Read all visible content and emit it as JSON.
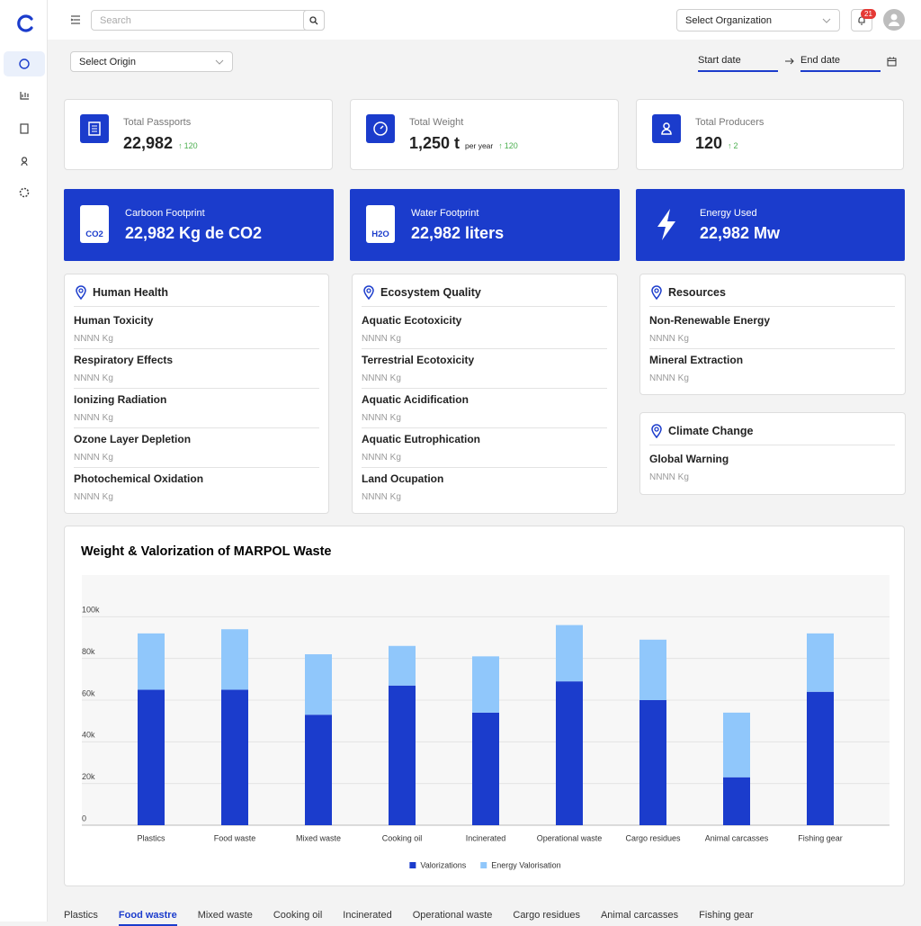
{
  "header": {
    "search_placeholder": "Search",
    "organization": "Select Organization",
    "notifications": "21"
  },
  "filters": {
    "origin": "Select Origin",
    "start_date": "Start date",
    "end_date": "End date"
  },
  "stats": [
    {
      "label": "Total Passports",
      "value": "22,982",
      "change": "120"
    },
    {
      "label": "Total Weight",
      "value": "1,250 t",
      "unit": "per year",
      "change": "120"
    },
    {
      "label": "Total Producers",
      "value": "120",
      "change": "2"
    }
  ],
  "footprints": [
    {
      "label": "Carboon Footprint",
      "value": "22,982 Kg de CO2",
      "badge": "CO2"
    },
    {
      "label": "Water Footprint",
      "value": "22,982 liters",
      "badge": "H2O"
    },
    {
      "label": "Energy Used",
      "value": "22,982 Mw"
    }
  ],
  "impacts": [
    {
      "title": "Human Health",
      "items": [
        {
          "name": "Human Toxicity",
          "value": "NNNN Kg"
        },
        {
          "name": "Respiratory Effects",
          "value": "NNNN Kg"
        },
        {
          "name": "Ionizing Radiation",
          "value": "NNNN Kg"
        },
        {
          "name": "Ozone Layer Depletion",
          "value": "NNNN Kg"
        },
        {
          "name": "Photochemical Oxidation",
          "value": "NNNN Kg"
        }
      ]
    },
    {
      "title": "Ecosystem Quality",
      "items": [
        {
          "name": "Aquatic Ecotoxicity",
          "value": "NNNN Kg"
        },
        {
          "name": "Terrestrial Ecotoxicity",
          "value": "NNNN Kg"
        },
        {
          "name": "Aquatic Acidification",
          "value": "NNNN Kg"
        },
        {
          "name": "Aquatic Eutrophication",
          "value": "NNNN Kg"
        },
        {
          "name": "Land Ocupation",
          "value": "NNNN Kg"
        }
      ]
    },
    {
      "title": "Resources",
      "items": [
        {
          "name": "Non-Renewable Energy",
          "value": "NNNN Kg"
        },
        {
          "name": "Mineral Extraction",
          "value": "NNNN Kg"
        }
      ]
    },
    {
      "title": "Climate Change",
      "items": [
        {
          "name": "Global Warning",
          "value": "NNNN Kg"
        }
      ]
    }
  ],
  "chart_data": {
    "type": "stacked-bar",
    "title": "Weight & Valorization of MARPOL Waste",
    "categories": [
      "Plastics",
      "Food waste",
      "Mixed waste",
      "Cooking oil",
      "Incinerated",
      "Operational waste",
      "Cargo residues",
      "Animal carcasses",
      "Fishing gear"
    ],
    "series": [
      {
        "name": "Valorizations",
        "color": "#1b3ccc",
        "values": [
          65000,
          65000,
          53000,
          67000,
          54000,
          69000,
          60000,
          23000,
          64000
        ]
      },
      {
        "name": "Energy Valorisation",
        "color": "#90c7fb",
        "values": [
          27000,
          29000,
          29000,
          19000,
          27000,
          27000,
          29000,
          31000,
          28000
        ]
      }
    ],
    "ylim": [
      0,
      120000
    ],
    "yticks": [
      0,
      {
        "value": 20000,
        "label": "20k"
      },
      {
        "value": 40000,
        "label": "40k"
      },
      {
        "value": 60000,
        "label": "60k"
      },
      {
        "value": 80000,
        "label": "80k"
      },
      {
        "value": 100000,
        "label": "100k"
      }
    ],
    "grid": true,
    "legend": "bottom"
  },
  "tabs": {
    "items": [
      "Plastics",
      "Food wastre",
      "Mixed waste",
      "Cooking oil",
      "Incinerated",
      "Operational waste",
      "Cargo residues",
      "Animal carcasses",
      "Fishing gear"
    ],
    "selected": 1
  }
}
